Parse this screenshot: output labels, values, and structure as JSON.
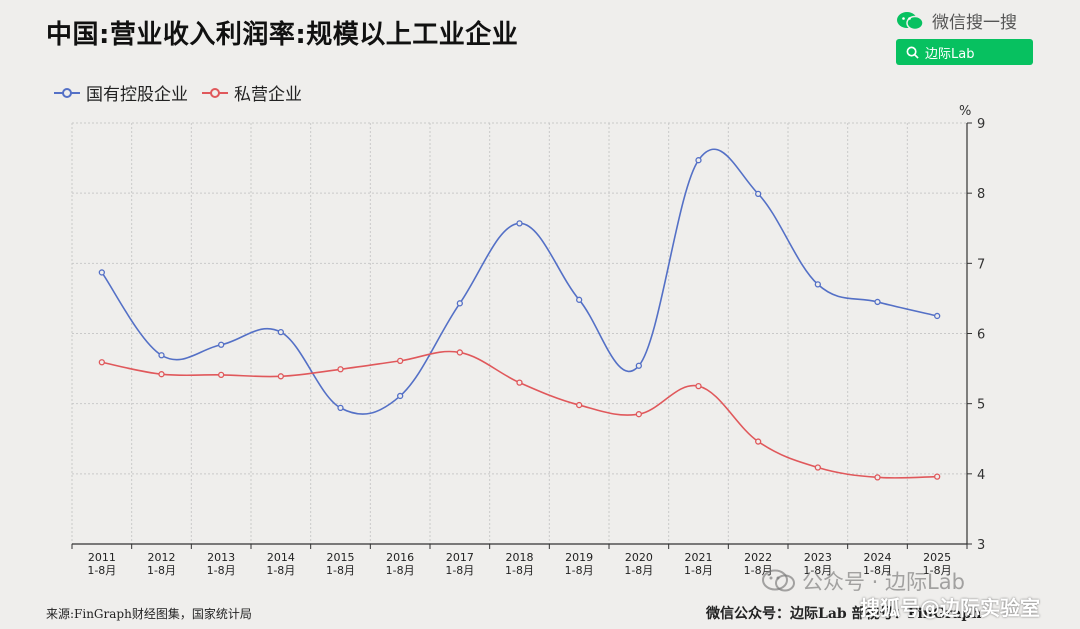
{
  "header": {
    "title": "中国:营业收入利润率:规模以上工业企业"
  },
  "wechat": {
    "search_label": "微信搜一搜",
    "search_query": "边际Lab"
  },
  "chart_data": {
    "type": "line",
    "title": "中国:营业收入利润率:规模以上工业企业",
    "categories": [
      "2011\n1-8月",
      "2012\n1-8月",
      "2013\n1-8月",
      "2014\n1-8月",
      "2015\n1-8月",
      "2016\n1-8月",
      "2017\n1-8月",
      "2018\n1-8月",
      "2019\n1-8月",
      "2020\n1-8月",
      "2021\n1-8月",
      "2022\n1-8月",
      "2023\n1-8月",
      "2024\n1-8月",
      "2025\n1-8月"
    ],
    "series": [
      {
        "name": "国有控股企业",
        "color": "#5470c6",
        "values": [
          6.87,
          5.69,
          5.84,
          6.02,
          4.94,
          5.11,
          6.43,
          7.57,
          6.48,
          5.54,
          8.47,
          7.99,
          6.7,
          6.45,
          6.25
        ]
      },
      {
        "name": "私营企业",
        "color": "#e0585b",
        "values": [
          5.59,
          5.42,
          5.41,
          5.39,
          5.49,
          5.61,
          5.73,
          5.3,
          4.98,
          4.85,
          5.25,
          4.46,
          4.09,
          3.95,
          3.96
        ]
      }
    ],
    "y_axis": {
      "position": "right",
      "unit": "%",
      "ylim": [
        3,
        9
      ],
      "ticks": [
        "3",
        "4",
        "5",
        "6",
        "7",
        "8",
        "9"
      ]
    },
    "grid": true,
    "legend_position": "top-left"
  },
  "footer": {
    "source": "来源:FinGraph财经图集，国家统计局",
    "right": "微信公众号：边际Lab   部视号：FinGraph"
  },
  "watermarks": {
    "official_account": "公众号 · 边际Lab",
    "sohu": "搜狐号@边际实验室"
  }
}
